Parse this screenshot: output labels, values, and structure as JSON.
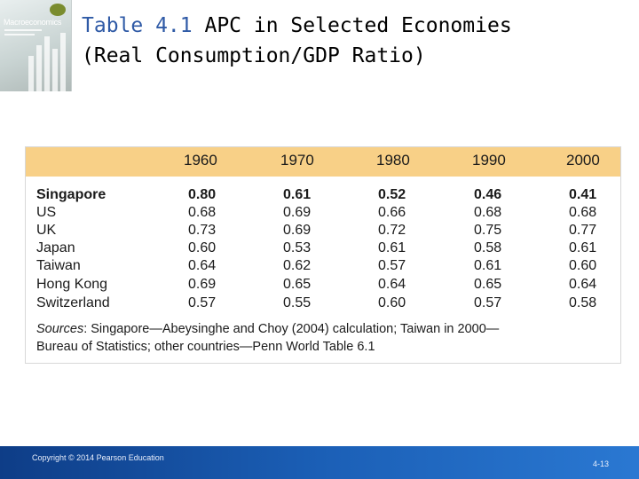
{
  "book_cover": {
    "title": "Macroeconomics"
  },
  "slide_title": {
    "label": "Table 4.1",
    "text_line1": "APC in Selected Economies",
    "text_line2": "(Real Consumption/GDP Ratio)"
  },
  "table": {
    "columns": [
      "1960",
      "1970",
      "1980",
      "1990",
      "2000"
    ],
    "rows": [
      {
        "country": "Singapore",
        "values": [
          "0.80",
          "0.61",
          "0.52",
          "0.46",
          "0.41"
        ]
      },
      {
        "country": "US",
        "values": [
          "0.68",
          "0.69",
          "0.66",
          "0.68",
          "0.68"
        ]
      },
      {
        "country": "UK",
        "values": [
          "0.73",
          "0.69",
          "0.72",
          "0.75",
          "0.77"
        ]
      },
      {
        "country": "Japan",
        "values": [
          "0.60",
          "0.53",
          "0.61",
          "0.58",
          "0.61"
        ]
      },
      {
        "country": "Taiwan",
        "values": [
          "0.64",
          "0.62",
          "0.57",
          "0.61",
          "0.60"
        ]
      },
      {
        "country": "Hong Kong",
        "values": [
          "0.69",
          "0.65",
          "0.64",
          "0.65",
          "0.64"
        ]
      },
      {
        "country": "Switzerland",
        "values": [
          "0.57",
          "0.55",
          "0.60",
          "0.57",
          "0.58"
        ]
      }
    ],
    "sources_label": "Sources",
    "sources_line1": ": Singapore—Abeysinghe and Choy (2004) calculation; Taiwan in 2000—",
    "sources_line2": "Bureau of Statistics; other countries—Penn World Table 6.1"
  },
  "footer": {
    "copyright": "Copyright © 2014 Pearson Education",
    "page_number": "4-13"
  },
  "colors": {
    "header_band": "#f8d087",
    "title_accent": "#2f5aa6",
    "footer_bar": "#1b5fb6"
  }
}
